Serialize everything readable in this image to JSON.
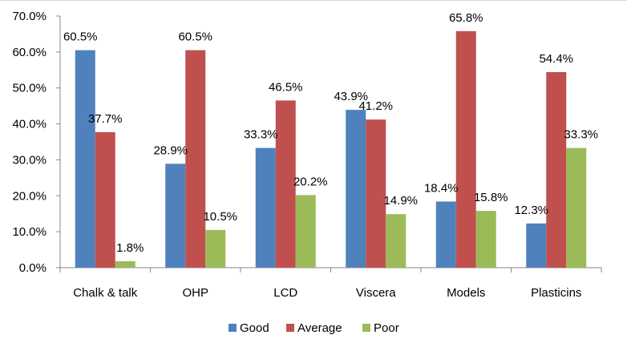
{
  "chart_data": {
    "type": "bar",
    "title": "",
    "xlabel": "",
    "ylabel": "",
    "ylim": [
      0,
      70
    ],
    "y_ticks": [
      0,
      10,
      20,
      30,
      40,
      50,
      60,
      70
    ],
    "y_tick_labels": [
      "0.0%",
      "10.0%",
      "20.0%",
      "30.0%",
      "40.0%",
      "50.0%",
      "60.0%",
      "70.0%"
    ],
    "grid": false,
    "legend_position": "bottom",
    "categories": [
      "Chalk & talk",
      "OHP",
      "LCD",
      "Viscera",
      "Models",
      "Plasticins"
    ],
    "series": [
      {
        "name": "Good",
        "color": "#4f81bd",
        "values": [
          60.5,
          28.9,
          33.3,
          43.9,
          18.4,
          12.3
        ],
        "labels": [
          "60.5%",
          "28.9%",
          "33.3%",
          "43.9%",
          "18.4%",
          "12.3%"
        ]
      },
      {
        "name": "Average",
        "color": "#c0504d",
        "values": [
          37.7,
          60.5,
          46.5,
          41.2,
          65.8,
          54.4
        ],
        "labels": [
          "37.7%",
          "60.5%",
          "46.5%",
          "41.2%",
          "65.8%",
          "54.4%"
        ]
      },
      {
        "name": "Poor",
        "color": "#9bbb59",
        "values": [
          1.8,
          10.5,
          20.2,
          14.9,
          15.8,
          33.3
        ],
        "labels": [
          "1.8%",
          "10.5%",
          "20.2%",
          "14.9%",
          "15.8%",
          "33.3%"
        ]
      }
    ],
    "axis_color": "#898989"
  }
}
